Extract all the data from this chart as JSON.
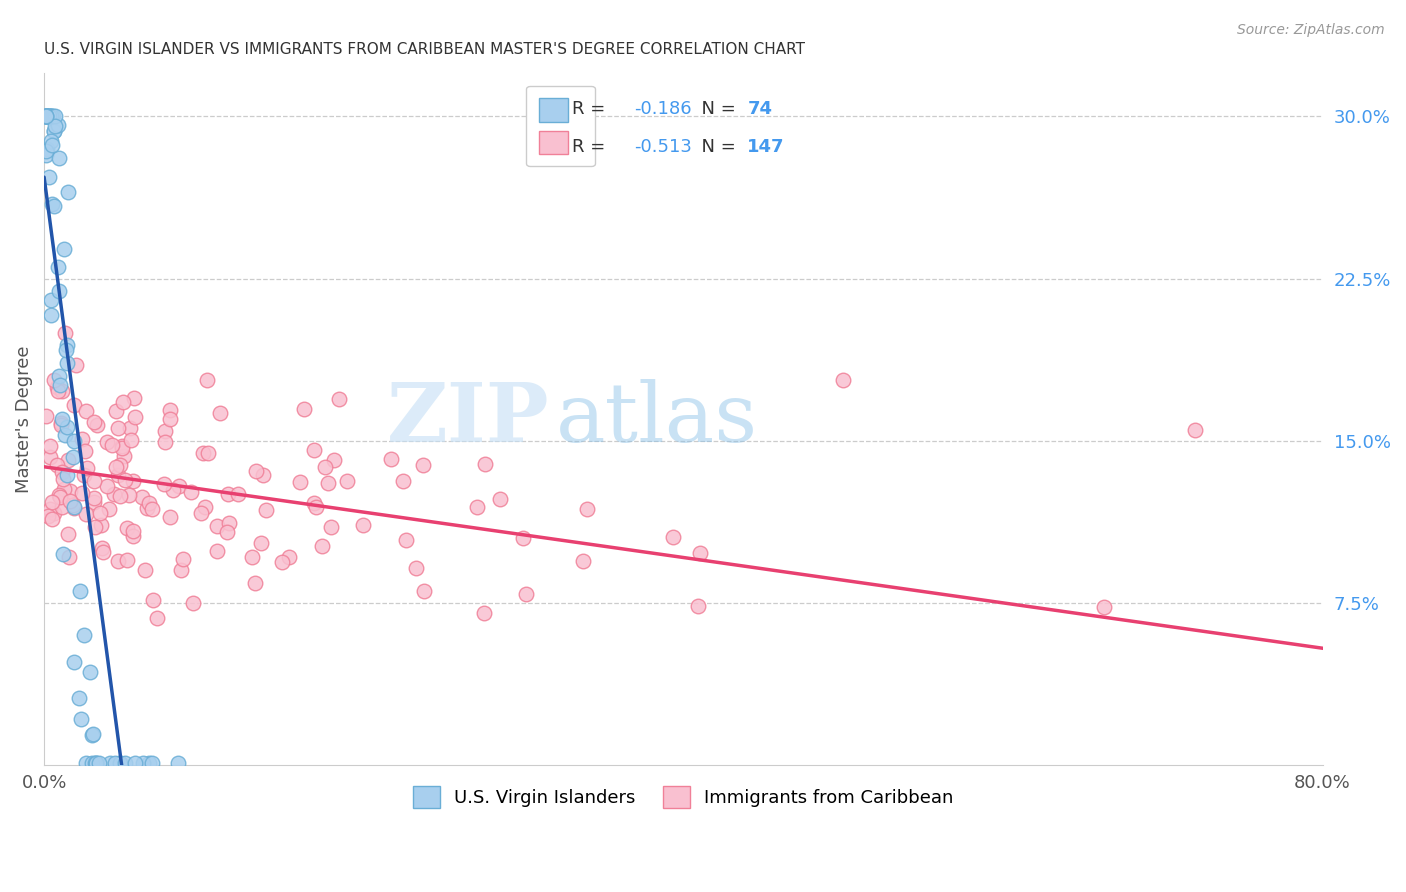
{
  "title": "U.S. VIRGIN ISLANDER VS IMMIGRANTS FROM CARIBBEAN MASTER'S DEGREE CORRELATION CHART",
  "source": "Source: ZipAtlas.com",
  "ylabel": "Master's Degree",
  "right_ytick_vals": [
    0.075,
    0.15,
    0.225,
    0.3
  ],
  "right_ytick_labels": [
    "7.5%",
    "15.0%",
    "22.5%",
    "30.0%"
  ],
  "xlim": [
    0.0,
    0.8
  ],
  "ylim": [
    0.0,
    0.32
  ],
  "blue_R": -0.186,
  "blue_N": 74,
  "pink_R": -0.513,
  "pink_N": 147,
  "blue_label": "U.S. Virgin Islanders",
  "pink_label": "Immigrants from Caribbean",
  "blue_fill_color": "#a8cfee",
  "blue_edge_color": "#6aaed6",
  "pink_fill_color": "#f9c0d0",
  "pink_edge_color": "#f08098",
  "blue_line_color": "#2255aa",
  "pink_line_color": "#e84070",
  "dash_color": "#c0c0c0",
  "legend_R_color": "#333333",
  "legend_N_color": "#4499ee",
  "legend_val_color": "#4499ee",
  "right_axis_color": "#4499ee",
  "watermark_zip_color": "#c5dff5",
  "watermark_atlas_color": "#88c0e8",
  "background_color": "#ffffff",
  "grid_color": "#cccccc",
  "title_color": "#333333",
  "source_color": "#999999",
  "axis_label_color": "#555555"
}
